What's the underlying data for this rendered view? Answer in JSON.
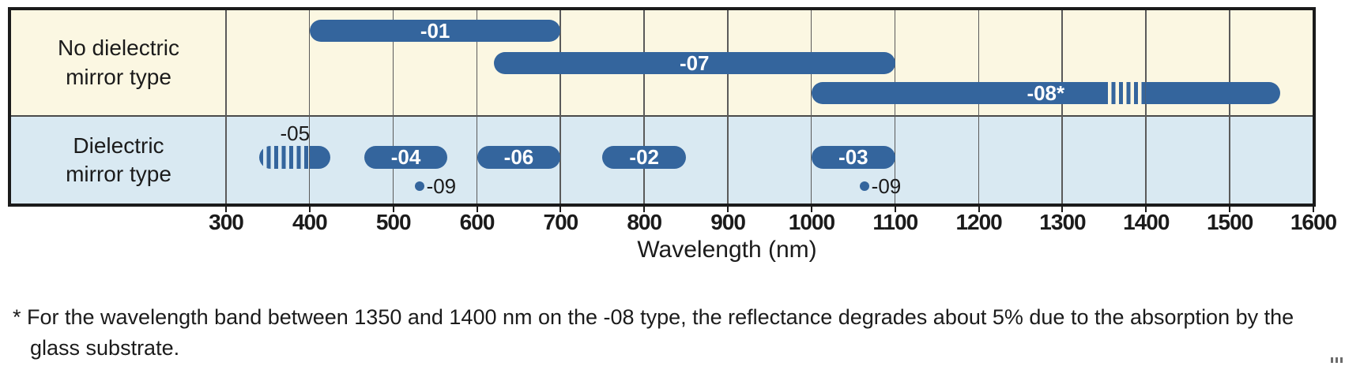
{
  "chart_data": {
    "type": "bar",
    "subtype": "horizontal-wavelength-range-chart",
    "title": "",
    "axis": {
      "label": "Wavelength (nm)",
      "unit": "nm",
      "min": 300,
      "max": 1600,
      "tick_step": 100,
      "ticks": [
        300,
        400,
        500,
        600,
        700,
        800,
        900,
        1000,
        1100,
        1200,
        1300,
        1400,
        1500,
        1600
      ],
      "grid": true
    },
    "rows": [
      {
        "label": "No dielectric\nmirror type",
        "background": "#fbf7e2",
        "bars": [
          {
            "name": "-01",
            "start": 400,
            "end": 700
          },
          {
            "name": "-07",
            "start": 620,
            "end": 1100
          },
          {
            "name": "-08*",
            "start": 1000,
            "end": 1560,
            "dashed": {
              "start": 1350,
              "end": 1400
            }
          }
        ],
        "points": []
      },
      {
        "label": "Dielectric\nmirror type",
        "background": "#d9e9f2",
        "bars": [
          {
            "name": "-05",
            "start": 340,
            "end": 425,
            "dashed": {
              "start": 340,
              "end": 400
            },
            "label_position": "above"
          },
          {
            "name": "-04",
            "start": 465,
            "end": 565
          },
          {
            "name": "-06",
            "start": 600,
            "end": 700
          },
          {
            "name": "-02",
            "start": 750,
            "end": 850
          },
          {
            "name": "-03",
            "start": 1000,
            "end": 1100
          }
        ],
        "points": [
          {
            "name": "-09",
            "wavelength": 532
          },
          {
            "name": "-09",
            "wavelength": 1064
          }
        ]
      }
    ],
    "colors": {
      "bar": "#34659d",
      "bar_label": "#ffffff",
      "grid": "#5a5a5a",
      "row_divider": "#4a4a4a",
      "border": "#1b1b1b",
      "text": "#1b1b1b",
      "row1_bg": "#fbf7e2",
      "row2_bg": "#d9e9f2"
    },
    "footnote": "* For the wavelength band between 1350 and 1400 nm on the -08 type, the reflectance degrades about 5% due to the absorption by the glass substrate."
  }
}
